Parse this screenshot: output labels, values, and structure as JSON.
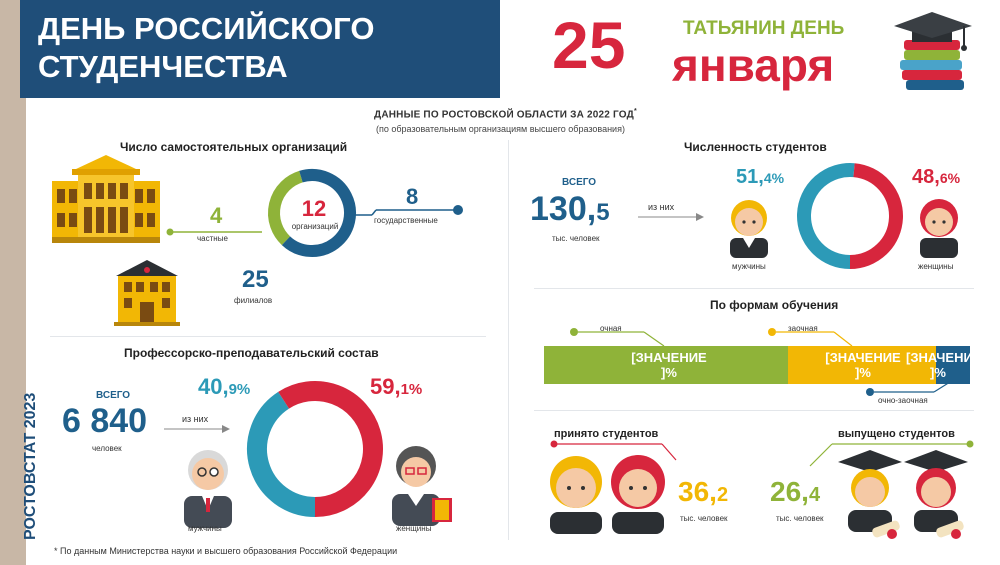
{
  "header": {
    "title_line1": "ДЕНЬ РОССИЙСКОГО",
    "title_line2": "СТУДЕНЧЕСТВА",
    "date_day": "25",
    "holiday": "ТАТЬЯНИН ДЕНЬ",
    "date_month": "января"
  },
  "intro": {
    "title": "ДАННЫЕ ПО РОСТОВСКОЙ ОБЛАСТИ ЗА 2022 ГОД",
    "asterisk": "*",
    "subtitle": "(по образовательным организациям высшего образования)"
  },
  "organizations": {
    "heading": "Число самостоятельных организаций",
    "total": "12",
    "total_label": "организаций",
    "private_value": "4",
    "private_label": "частные",
    "state_value": "8",
    "state_label": "государственные",
    "branches_value": "25",
    "branches_label": "филиалов",
    "private_share": 0.333,
    "colors": {
      "private": "#8fb339",
      "state": "#1f5f8b"
    }
  },
  "staff": {
    "heading": "Профессорско-преподавательский состав",
    "total_caption": "ВСЕГО",
    "total": "6 840",
    "total_unit": "человек",
    "of_them": "из них",
    "male_int": "40,",
    "male_dec": "9%",
    "female_int": "59,",
    "female_dec": "1%",
    "male_label": "мужчины",
    "female_label": "женщины",
    "male_share": 40.9
  },
  "side_label": "РОСТОВСТАТ 2023",
  "students": {
    "heading": "Численность студентов",
    "total_caption": "ВСЕГО",
    "total_int": "130,",
    "total_dec": "5",
    "total_unit": "тыс. человек",
    "of_them": "из них",
    "male_int": "51,",
    "male_dec": "4%",
    "female_int": "48,",
    "female_dec": "6%",
    "male_label": "мужчины",
    "female_label": "женщины",
    "male_share": 51.4
  },
  "forms": {
    "heading": "По формам обучения",
    "full_time": "очная",
    "part_time": "заочная",
    "evening": "очно-заочная",
    "placeholder_line1": "[ЗНАЧЕНИЕ",
    "placeholder_line2": "]%",
    "placeholder_short": "[ЗНАЧЕНИ",
    "colors": {
      "full_time": "#8fb339",
      "part_time": "#f2b705",
      "evening": "#1f5f8b"
    }
  },
  "admitted": {
    "heading": "принято студентов",
    "value_int": "36,",
    "value_dec": "2",
    "unit": "тыс. человек"
  },
  "graduated": {
    "heading": "выпущено студентов",
    "value_int": "26,",
    "value_dec": "4",
    "unit": "тыс. человек"
  },
  "footnote": "* По данным Министерства науки и высшего образования Российской Федерации"
}
